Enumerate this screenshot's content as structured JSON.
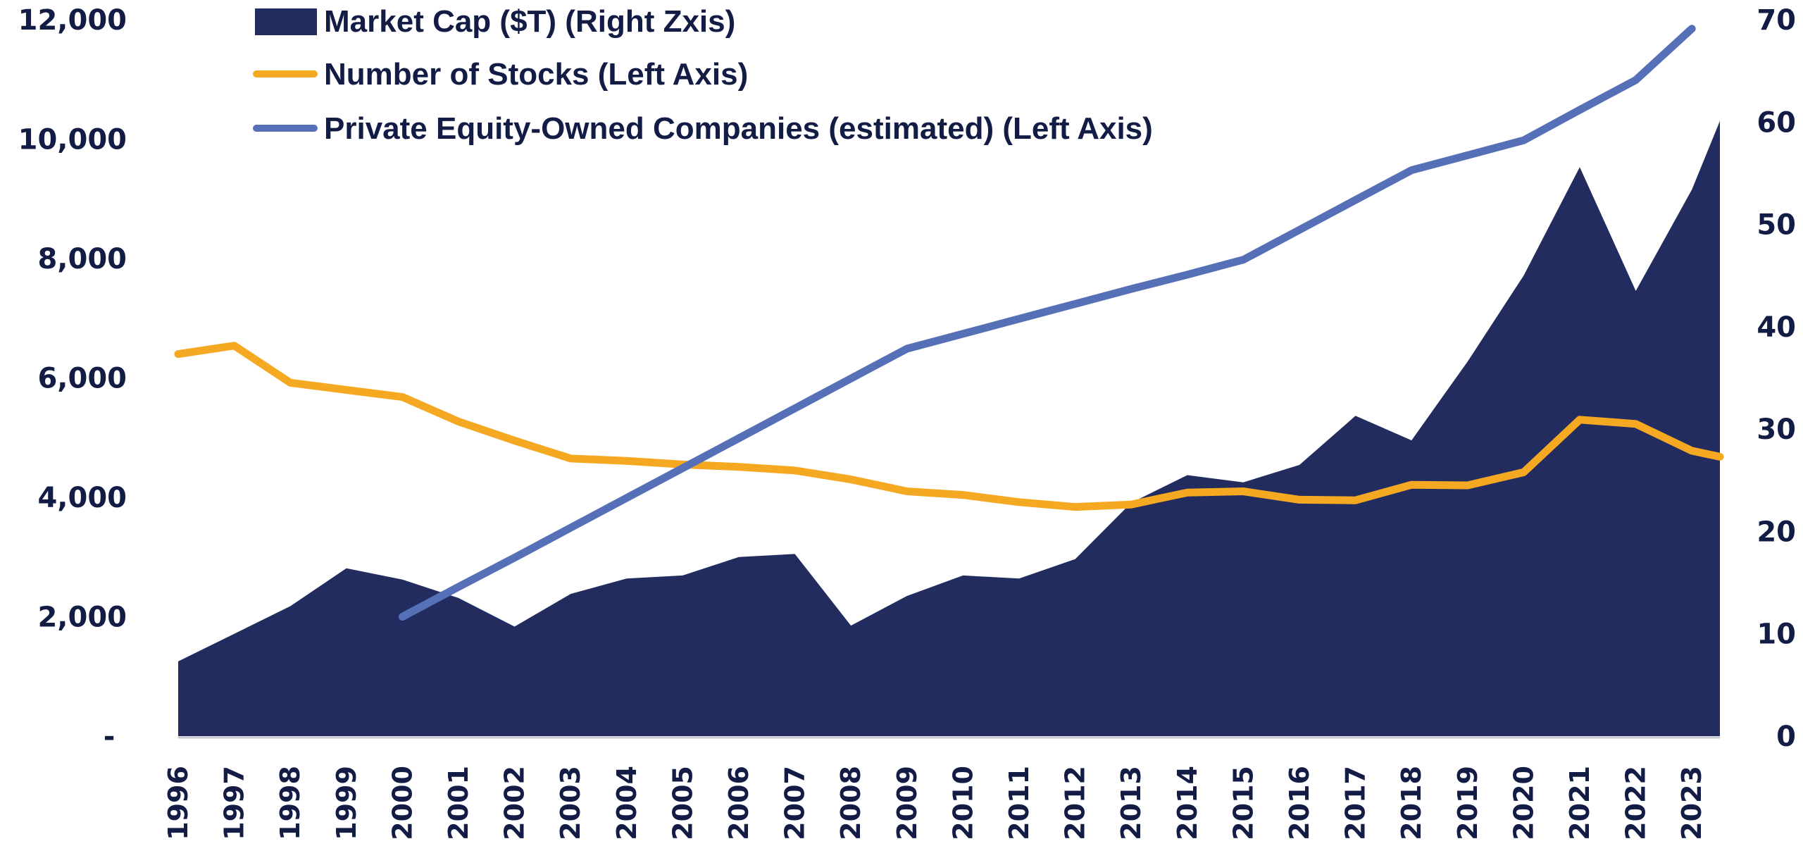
{
  "chart_data": {
    "type": "area+line",
    "title": "",
    "xlabel": "",
    "ylabel_left": "",
    "ylabel_right": "",
    "categories": [
      "1996",
      "1997",
      "1998",
      "1999",
      "2000",
      "2001",
      "2002",
      "2003",
      "2004",
      "2005",
      "2006",
      "2007",
      "2008",
      "2009",
      "2010",
      "2011",
      "2012",
      "2013",
      "2014",
      "2015",
      "2016",
      "2017",
      "2018",
      "2019",
      "2020",
      "2021",
      "2022",
      "2023"
    ],
    "x_range": [
      1996,
      2023.5
    ],
    "left_axis": {
      "range": [
        0,
        12000
      ],
      "ticks": [
        0,
        2000,
        4000,
        6000,
        8000,
        10000,
        12000
      ],
      "tick_labels": [
        "-",
        "2,000",
        "4,000",
        "6,000",
        "8,000",
        "10,000",
        "12,000"
      ]
    },
    "right_axis": {
      "range": [
        0,
        70
      ],
      "ticks": [
        0,
        10,
        20,
        30,
        40,
        50,
        60,
        70
      ],
      "tick_labels": [
        "0",
        "10",
        "20",
        "30",
        "40",
        "50",
        "60",
        "70"
      ]
    },
    "grid": false,
    "legend_position": "top-left",
    "series": [
      {
        "name": "Market Cap ($T) (Right Zxis)",
        "kind": "area",
        "axis": "right",
        "color": "#222c5f",
        "x": [
          1996,
          1997,
          1998,
          1999,
          2000,
          2001,
          2002,
          2003,
          2004,
          2005,
          2006,
          2007,
          2008,
          2009,
          2010,
          2011,
          2012,
          2013,
          2014,
          2015,
          2016,
          2017,
          2018,
          2019,
          2020,
          2021,
          2022,
          2023,
          2023.5
        ],
        "values": [
          7.3,
          10.0,
          12.7,
          16.4,
          15.3,
          13.5,
          10.7,
          13.9,
          15.4,
          15.7,
          17.5,
          17.8,
          10.8,
          13.7,
          15.7,
          15.4,
          17.3,
          22.8,
          25.5,
          24.8,
          26.5,
          31.3,
          28.9,
          36.6,
          45.0,
          55.6,
          43.5,
          53.4,
          60.1
        ]
      },
      {
        "name": "Number of Stocks (Left Axis)",
        "kind": "line",
        "axis": "left",
        "color": "#f5a922",
        "x": [
          1996,
          1997,
          1998,
          1999,
          2000,
          2001,
          2002,
          2003,
          2004,
          2005,
          2006,
          2007,
          2008,
          2009,
          2010,
          2011,
          2012,
          2013,
          2014,
          2015,
          2016,
          2017,
          2018,
          2019,
          2020,
          2021,
          2022,
          2023,
          2023.5
        ],
        "values": [
          6400,
          6540,
          5920,
          5800,
          5680,
          5270,
          4950,
          4650,
          4610,
          4550,
          4510,
          4450,
          4300,
          4100,
          4040,
          3920,
          3840,
          3880,
          4080,
          4100,
          3960,
          3950,
          4210,
          4200,
          4420,
          5300,
          5230,
          4780,
          4680
        ]
      },
      {
        "name": "Private Equity-Owned Companies (estimated) (Left Axis)",
        "kind": "line",
        "axis": "left",
        "color": "#5670b8",
        "x": [
          2000,
          2001,
          2002,
          2003,
          2004,
          2005,
          2006,
          2007,
          2008,
          2009,
          2010,
          2011,
          2012,
          2013,
          2014,
          2015,
          2016,
          2017,
          2018,
          2019,
          2020,
          2021,
          2022,
          2023
        ],
        "values": [
          2000,
          2500,
          2990,
          3490,
          3990,
          4490,
          4990,
          5490,
          5990,
          6490,
          6740,
          6990,
          7240,
          7490,
          7730,
          7980,
          8480,
          8980,
          9480,
          9730,
          9980,
          10490,
          10990,
          11850
        ]
      }
    ]
  },
  "legend": [
    {
      "label": "Market Cap ($T) (Right Zxis)",
      "swatch": "box",
      "color": "#222c5f"
    },
    {
      "label": "Number of Stocks (Left Axis)",
      "swatch": "line",
      "color": "#f5a922"
    },
    {
      "label": "Private Equity-Owned Companies (estimated) (Left Axis)",
      "swatch": "line",
      "color": "#5670b8"
    }
  ],
  "colors": {
    "text": "#131c45",
    "axis_line": "#c9c9d0",
    "background": "#ffffff"
  }
}
